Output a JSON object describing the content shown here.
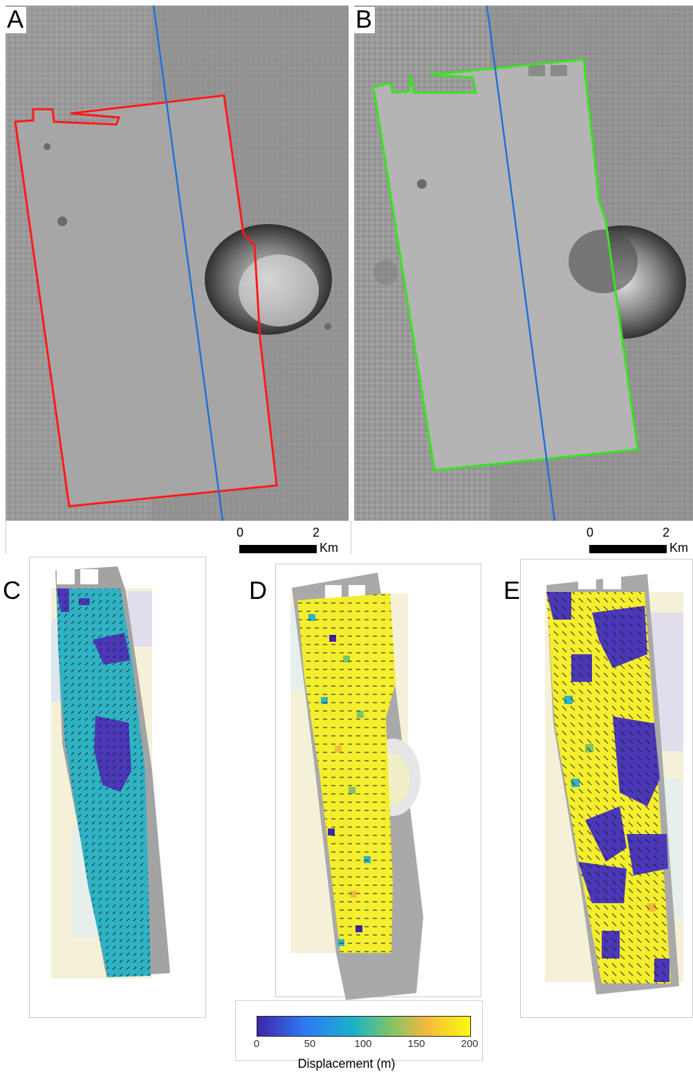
{
  "panels": {
    "a": {
      "letter": "A"
    },
    "b": {
      "letter": "B"
    },
    "c": {
      "letter": "C"
    },
    "d": {
      "letter": "D"
    },
    "e": {
      "letter": "E"
    }
  },
  "scalebar": {
    "start": "0",
    "end": "2",
    "unit": "Km"
  },
  "colorbar": {
    "label": "Displacement (m)",
    "ticks": [
      "0",
      "50",
      "100",
      "150",
      "200"
    ],
    "colors": [
      "#3e26a8",
      "#2f77f3",
      "#1ab1c8",
      "#7dc46a",
      "#f7b93c",
      "#f9fb0e"
    ]
  },
  "colors": {
    "outline_a": "#ff1a1a",
    "outline_b": "#33e61a",
    "track_line": "#1f6fe0",
    "low": "#4a38b8",
    "mid": "#2fb3c4",
    "high": "#f4ee2e"
  }
}
